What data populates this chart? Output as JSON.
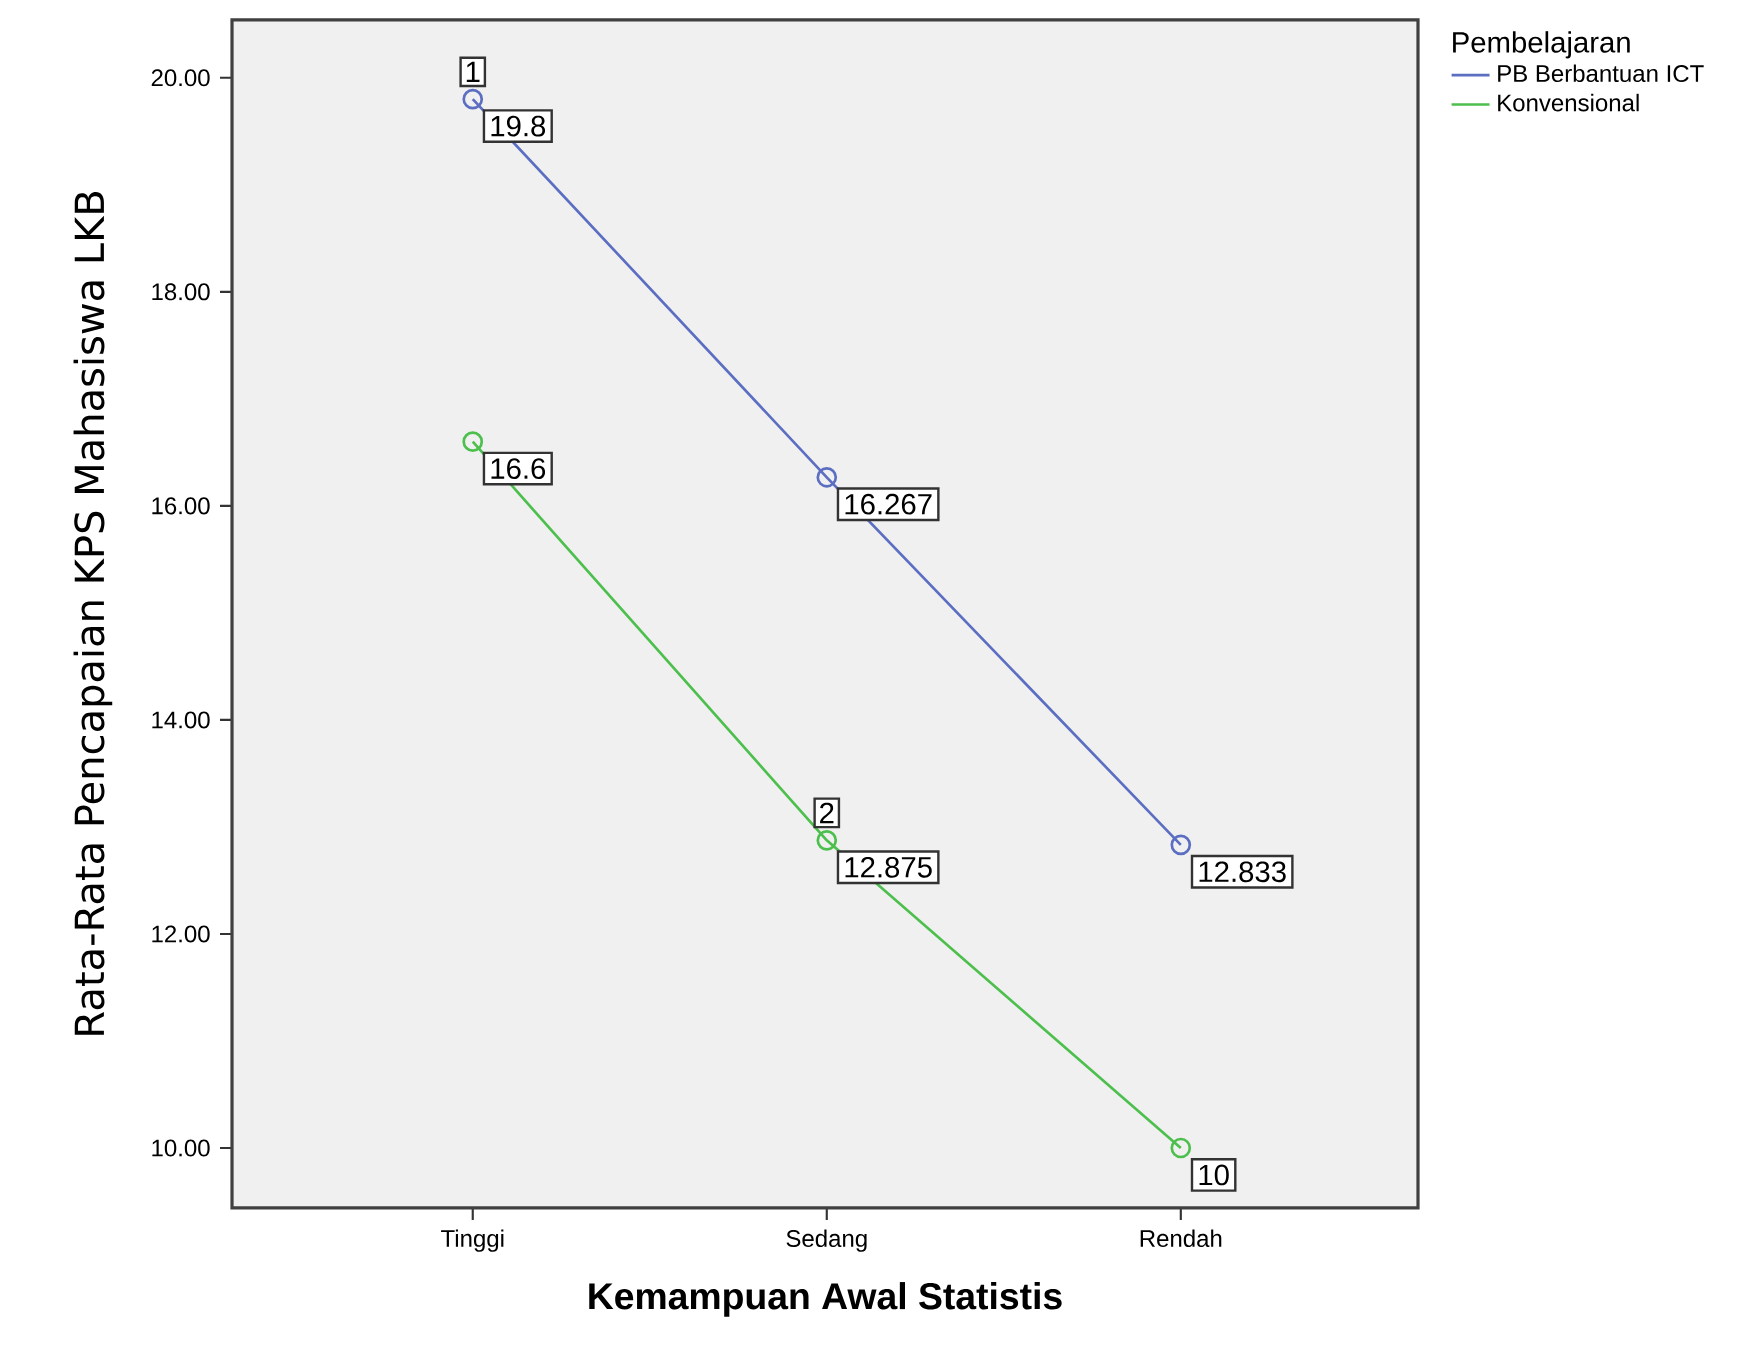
{
  "chart_data": {
    "type": "line",
    "xlabel": "Kemampuan Awal Statistis",
    "ylabel": "Rata-Rata Pencapaian KPS Mahasiswa LKB",
    "legend_title": "Pembelajaran",
    "legend": "top right",
    "marker": "circle",
    "grid": false,
    "categories": [
      "Tinggi",
      "Sedang",
      "Rendah"
    ],
    "ylim": [
      9.44,
      20.54
    ],
    "yticks": [
      {
        "value": 10,
        "label": "10.00"
      },
      {
        "value": 12,
        "label": "12.00"
      },
      {
        "value": 14,
        "label": "14.00"
      },
      {
        "value": 16,
        "label": "16.00"
      },
      {
        "value": 18,
        "label": "18.00"
      },
      {
        "value": 20,
        "label": "20.00"
      }
    ],
    "series": [
      {
        "name": "PB Berbantuan ICT",
        "color": "#5b6ec2",
        "values": [
          19.8,
          16.267,
          12.833
        ],
        "value_labels": [
          "19.8",
          "16.267",
          "12.833"
        ]
      },
      {
        "name": "Konvensional",
        "color": "#4cbf4c",
        "values": [
          16.6,
          12.875,
          10
        ],
        "value_labels": [
          "16.6",
          "12.875",
          "10"
        ]
      }
    ],
    "annotations": [
      {
        "text": "1",
        "x": "Tinggi",
        "y": 19.8
      },
      {
        "text": "2",
        "x": "Sedang",
        "y": 12.875
      }
    ]
  }
}
